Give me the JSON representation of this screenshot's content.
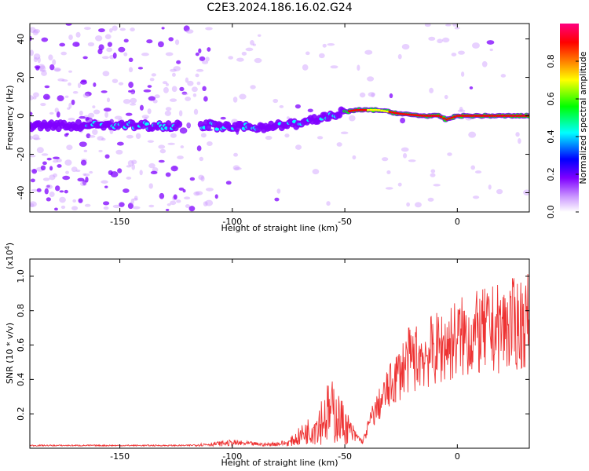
{
  "chart_data": [
    {
      "type": "heatmap",
      "title": "C2E3.2024.186.16.02.G24",
      "xlabel": "Height of straight line (km)",
      "ylabel": "Frequency (Hz)",
      "xlim": [
        -190,
        32
      ],
      "ylim": [
        -50,
        48
      ],
      "x_ticks": [
        -150,
        -100,
        -50,
        0
      ],
      "y_ticks": [
        -40,
        -20,
        0,
        20,
        40
      ],
      "colorbar": {
        "label": "Normalized spectral amplitude",
        "range": [
          0,
          1
        ],
        "ticks": [
          0.0,
          0.2,
          0.4,
          0.6,
          0.8
        ],
        "colormap": [
          "#ffffff",
          "#cc99ff",
          "#7f00ff",
          "#0000ff",
          "#00ffff",
          "#00ff00",
          "#ffff00",
          "#ff7f00",
          "#ff0000",
          "#ff0080"
        ]
      },
      "ridge": {
        "x": [
          -190,
          -170,
          -150,
          -130,
          -110,
          -100,
          -90,
          -80,
          -70,
          -60,
          -50,
          -45,
          -35,
          -25,
          -15,
          -8,
          -5,
          0,
          10,
          20,
          32
        ],
        "y": [
          -5,
          -5,
          -5,
          -5,
          -5,
          -6,
          -6,
          -5,
          -4,
          -1,
          2,
          3,
          3,
          1,
          0,
          0,
          -2,
          0,
          0,
          0,
          0
        ]
      },
      "grid": false
    },
    {
      "type": "line",
      "xlabel": "Height of straight line (km)",
      "ylabel": "SNR (10 * v/v)",
      "y_multiplier": "(x10",
      "y_multiplier_exp": "4",
      "y_multiplier_close": ")",
      "xlim": [
        -190,
        32
      ],
      "ylim": [
        0,
        1.1
      ],
      "x_ticks": [
        -150,
        -100,
        -50,
        0
      ],
      "y_ticks": [
        0.2,
        0.4,
        0.6,
        0.8,
        1.0
      ],
      "series": [
        {
          "color": "#ee3333",
          "envelope": {
            "x": [
              -190,
              -120,
              -100,
              -85,
              -75,
              -65,
              -58,
              -55,
              -50,
              -45,
              -42,
              -38,
              -33,
              -28,
              -22,
              -15,
              -8,
              0,
              10,
              20,
              32
            ],
            "y": [
              0.02,
              0.02,
              0.05,
              0.03,
              0.05,
              0.2,
              0.38,
              0.4,
              0.25,
              0.1,
              0.05,
              0.25,
              0.4,
              0.55,
              0.7,
              0.75,
              0.8,
              0.88,
              0.92,
              0.97,
              1.02
            ]
          }
        }
      ],
      "grid": false
    }
  ]
}
